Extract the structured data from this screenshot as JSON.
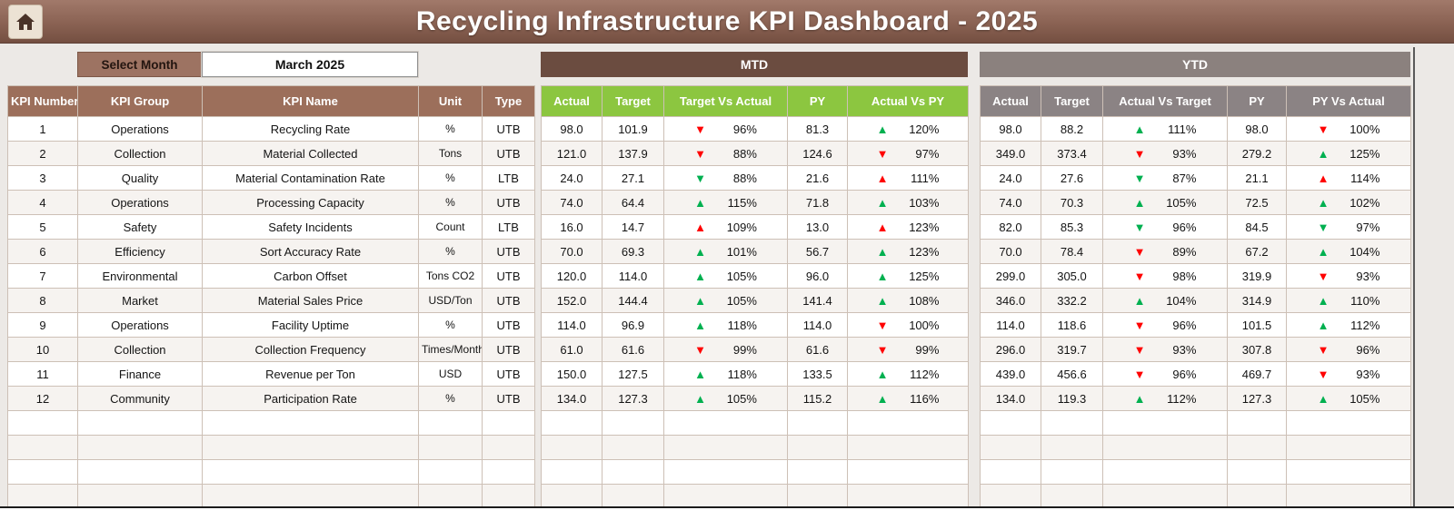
{
  "header": {
    "title": "Recycling Infrastructure KPI Dashboard - 2025"
  },
  "controls": {
    "select_month_label": "Select Month",
    "selected_month": "March 2025"
  },
  "sections": {
    "mtd_label": "MTD",
    "ytd_label": "YTD"
  },
  "colors": {
    "banner_brown": "#8a6253",
    "table_header_brown": "#9c6f5b",
    "mtd_bar_brown": "#6b4c40",
    "ytd_bar_gray": "#8b817e",
    "mtd_subheader_green": "#8cc640",
    "ytd_subheader_gray": "#8b8384",
    "arrow_green": "#00B050",
    "arrow_red": "#FF0000"
  },
  "table": {
    "left_headers": [
      "KPI Number",
      "KPI Group",
      "KPI Name",
      "Unit",
      "Type"
    ],
    "mtd_headers": [
      "Actual",
      "Target",
      "Target Vs Actual",
      "PY",
      "Actual Vs PY"
    ],
    "ytd_headers": [
      "Actual",
      "Target",
      "Actual Vs Target",
      "PY",
      "PY Vs Actual"
    ],
    "rows": [
      {
        "num": "1",
        "group": "Operations",
        "name": "Recycling Rate",
        "unit": "%",
        "type": "UTB",
        "mtd": {
          "actual": "98.0",
          "target": "101.9",
          "cmp1": {
            "dir": "down",
            "color": "red",
            "value": "96%"
          },
          "py": "81.3",
          "cmp2": {
            "dir": "up",
            "color": "green",
            "value": "120%"
          }
        },
        "ytd": {
          "actual": "98.0",
          "target": "88.2",
          "cmp1": {
            "dir": "up",
            "color": "green",
            "value": "111%"
          },
          "py": "98.0",
          "cmp2": {
            "dir": "down",
            "color": "red",
            "value": "100%"
          }
        }
      },
      {
        "num": "2",
        "group": "Collection",
        "name": "Material Collected",
        "unit": "Tons",
        "type": "UTB",
        "mtd": {
          "actual": "121.0",
          "target": "137.9",
          "cmp1": {
            "dir": "down",
            "color": "red",
            "value": "88%"
          },
          "py": "124.6",
          "cmp2": {
            "dir": "down",
            "color": "red",
            "value": "97%"
          }
        },
        "ytd": {
          "actual": "349.0",
          "target": "373.4",
          "cmp1": {
            "dir": "down",
            "color": "red",
            "value": "93%"
          },
          "py": "279.2",
          "cmp2": {
            "dir": "up",
            "color": "green",
            "value": "125%"
          }
        }
      },
      {
        "num": "3",
        "group": "Quality",
        "name": "Material Contamination Rate",
        "unit": "%",
        "type": "LTB",
        "mtd": {
          "actual": "24.0",
          "target": "27.1",
          "cmp1": {
            "dir": "down",
            "color": "green",
            "value": "88%"
          },
          "py": "21.6",
          "cmp2": {
            "dir": "up",
            "color": "red",
            "value": "111%"
          }
        },
        "ytd": {
          "actual": "24.0",
          "target": "27.6",
          "cmp1": {
            "dir": "down",
            "color": "green",
            "value": "87%"
          },
          "py": "21.1",
          "cmp2": {
            "dir": "up",
            "color": "red",
            "value": "114%"
          }
        }
      },
      {
        "num": "4",
        "group": "Operations",
        "name": "Processing Capacity",
        "unit": "%",
        "type": "UTB",
        "mtd": {
          "actual": "74.0",
          "target": "64.4",
          "cmp1": {
            "dir": "up",
            "color": "green",
            "value": "115%"
          },
          "py": "71.8",
          "cmp2": {
            "dir": "up",
            "color": "green",
            "value": "103%"
          }
        },
        "ytd": {
          "actual": "74.0",
          "target": "70.3",
          "cmp1": {
            "dir": "up",
            "color": "green",
            "value": "105%"
          },
          "py": "72.5",
          "cmp2": {
            "dir": "up",
            "color": "green",
            "value": "102%"
          }
        }
      },
      {
        "num": "5",
        "group": "Safety",
        "name": "Safety Incidents",
        "unit": "Count",
        "type": "LTB",
        "mtd": {
          "actual": "16.0",
          "target": "14.7",
          "cmp1": {
            "dir": "up",
            "color": "red",
            "value": "109%"
          },
          "py": "13.0",
          "cmp2": {
            "dir": "up",
            "color": "red",
            "value": "123%"
          }
        },
        "ytd": {
          "actual": "82.0",
          "target": "85.3",
          "cmp1": {
            "dir": "down",
            "color": "green",
            "value": "96%"
          },
          "py": "84.5",
          "cmp2": {
            "dir": "down",
            "color": "green",
            "value": "97%"
          }
        }
      },
      {
        "num": "6",
        "group": "Efficiency",
        "name": "Sort Accuracy Rate",
        "unit": "%",
        "type": "UTB",
        "mtd": {
          "actual": "70.0",
          "target": "69.3",
          "cmp1": {
            "dir": "up",
            "color": "green",
            "value": "101%"
          },
          "py": "56.7",
          "cmp2": {
            "dir": "up",
            "color": "green",
            "value": "123%"
          }
        },
        "ytd": {
          "actual": "70.0",
          "target": "78.4",
          "cmp1": {
            "dir": "down",
            "color": "red",
            "value": "89%"
          },
          "py": "67.2",
          "cmp2": {
            "dir": "up",
            "color": "green",
            "value": "104%"
          }
        }
      },
      {
        "num": "7",
        "group": "Environmental",
        "name": "Carbon Offset",
        "unit": "Tons CO2",
        "type": "UTB",
        "mtd": {
          "actual": "120.0",
          "target": "114.0",
          "cmp1": {
            "dir": "up",
            "color": "green",
            "value": "105%"
          },
          "py": "96.0",
          "cmp2": {
            "dir": "up",
            "color": "green",
            "value": "125%"
          }
        },
        "ytd": {
          "actual": "299.0",
          "target": "305.0",
          "cmp1": {
            "dir": "down",
            "color": "red",
            "value": "98%"
          },
          "py": "319.9",
          "cmp2": {
            "dir": "down",
            "color": "red",
            "value": "93%"
          }
        }
      },
      {
        "num": "8",
        "group": "Market",
        "name": "Material Sales Price",
        "unit": "USD/Ton",
        "type": "UTB",
        "mtd": {
          "actual": "152.0",
          "target": "144.4",
          "cmp1": {
            "dir": "up",
            "color": "green",
            "value": "105%"
          },
          "py": "141.4",
          "cmp2": {
            "dir": "up",
            "color": "green",
            "value": "108%"
          }
        },
        "ytd": {
          "actual": "346.0",
          "target": "332.2",
          "cmp1": {
            "dir": "up",
            "color": "green",
            "value": "104%"
          },
          "py": "314.9",
          "cmp2": {
            "dir": "up",
            "color": "green",
            "value": "110%"
          }
        }
      },
      {
        "num": "9",
        "group": "Operations",
        "name": "Facility Uptime",
        "unit": "%",
        "type": "UTB",
        "mtd": {
          "actual": "114.0",
          "target": "96.9",
          "cmp1": {
            "dir": "up",
            "color": "green",
            "value": "118%"
          },
          "py": "114.0",
          "cmp2": {
            "dir": "down",
            "color": "red",
            "value": "100%"
          }
        },
        "ytd": {
          "actual": "114.0",
          "target": "118.6",
          "cmp1": {
            "dir": "down",
            "color": "red",
            "value": "96%"
          },
          "py": "101.5",
          "cmp2": {
            "dir": "up",
            "color": "green",
            "value": "112%"
          }
        }
      },
      {
        "num": "10",
        "group": "Collection",
        "name": "Collection Frequency",
        "unit": "Times/Month",
        "type": "UTB",
        "mtd": {
          "actual": "61.0",
          "target": "61.6",
          "cmp1": {
            "dir": "down",
            "color": "red",
            "value": "99%"
          },
          "py": "61.6",
          "cmp2": {
            "dir": "down",
            "color": "red",
            "value": "99%"
          }
        },
        "ytd": {
          "actual": "296.0",
          "target": "319.7",
          "cmp1": {
            "dir": "down",
            "color": "red",
            "value": "93%"
          },
          "py": "307.8",
          "cmp2": {
            "dir": "down",
            "color": "red",
            "value": "96%"
          }
        }
      },
      {
        "num": "11",
        "group": "Finance",
        "name": "Revenue per Ton",
        "unit": "USD",
        "type": "UTB",
        "mtd": {
          "actual": "150.0",
          "target": "127.5",
          "cmp1": {
            "dir": "up",
            "color": "green",
            "value": "118%"
          },
          "py": "133.5",
          "cmp2": {
            "dir": "up",
            "color": "green",
            "value": "112%"
          }
        },
        "ytd": {
          "actual": "439.0",
          "target": "456.6",
          "cmp1": {
            "dir": "down",
            "color": "red",
            "value": "96%"
          },
          "py": "469.7",
          "cmp2": {
            "dir": "down",
            "color": "red",
            "value": "93%"
          }
        }
      },
      {
        "num": "12",
        "group": "Community",
        "name": "Participation Rate",
        "unit": "%",
        "type": "UTB",
        "mtd": {
          "actual": "134.0",
          "target": "127.3",
          "cmp1": {
            "dir": "up",
            "color": "green",
            "value": "105%"
          },
          "py": "115.2",
          "cmp2": {
            "dir": "up",
            "color": "green",
            "value": "116%"
          }
        },
        "ytd": {
          "actual": "134.0",
          "target": "119.3",
          "cmp1": {
            "dir": "up",
            "color": "green",
            "value": "112%"
          },
          "py": "127.3",
          "cmp2": {
            "dir": "up",
            "color": "green",
            "value": "105%"
          }
        }
      }
    ]
  }
}
